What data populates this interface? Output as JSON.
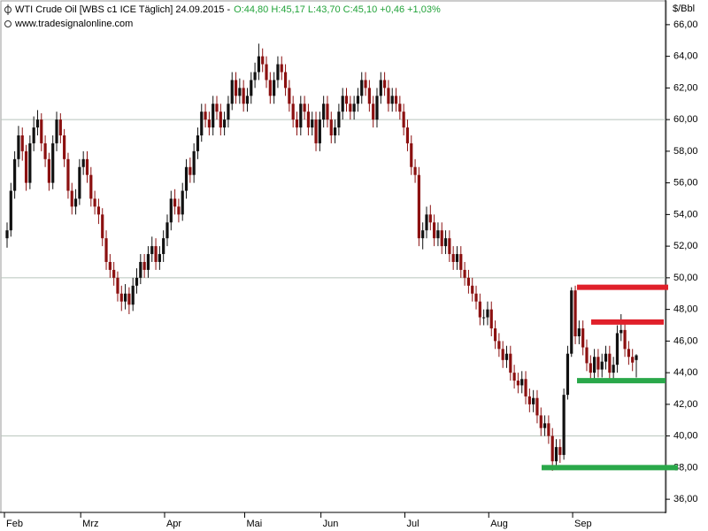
{
  "chart_data": {
    "type": "candlestick",
    "title": "WTI Crude Oil [WBS c1 ICE  Täglich] 24.09.2015 -",
    "title_quote": "O:44,80 H:45,17 L:43,70 C:45,10 +0,46 +1,03%",
    "subtitle": "www.tradesignalonline.com",
    "y_unit": "$/Bbl",
    "up_color": "#111111",
    "down_color": "#8b1010",
    "quote_color": "#22a33a",
    "ylim": [
      35,
      67
    ],
    "yticks": [
      {
        "value": 36,
        "label": "36,00"
      },
      {
        "value": 38,
        "label": "38,00"
      },
      {
        "value": 40,
        "label": "40,00"
      },
      {
        "value": 42,
        "label": "42,00"
      },
      {
        "value": 44,
        "label": "44,00"
      },
      {
        "value": 46,
        "label": "46,00"
      },
      {
        "value": 48,
        "label": "48,00"
      },
      {
        "value": 50,
        "label": "50,00"
      },
      {
        "value": 52,
        "label": "52,00"
      },
      {
        "value": 54,
        "label": "54,00"
      },
      {
        "value": 56,
        "label": "56,00"
      },
      {
        "value": 58,
        "label": "58,00"
      },
      {
        "value": 60,
        "label": "60,00"
      },
      {
        "value": 62,
        "label": "62,00"
      },
      {
        "value": 64,
        "label": "64,00"
      },
      {
        "value": 66,
        "label": "66,00"
      }
    ],
    "grid_values": [
      40,
      50,
      60
    ],
    "levels": [
      {
        "value": 49.4,
        "color": "#e0202a"
      },
      {
        "value": 47.2,
        "color": "#e0202a"
      },
      {
        "value": 43.5,
        "color": "#2aa84a"
      },
      {
        "value": 38.0,
        "color": "#2aa84a"
      }
    ],
    "categories": [
      "Feb",
      null,
      null,
      null,
      null,
      null,
      null,
      null,
      null,
      null,
      null,
      null,
      null,
      null,
      null,
      null,
      null,
      null,
      null,
      null,
      "Mrz",
      null,
      null,
      null,
      null,
      null,
      null,
      null,
      null,
      null,
      null,
      null,
      null,
      null,
      null,
      null,
      null,
      null,
      null,
      null,
      null,
      null,
      "Apr",
      null,
      null,
      null,
      null,
      null,
      null,
      null,
      null,
      null,
      null,
      null,
      null,
      null,
      null,
      null,
      null,
      null,
      null,
      null,
      null,
      "Mai",
      null,
      null,
      null,
      null,
      null,
      null,
      null,
      null,
      null,
      null,
      null,
      null,
      null,
      null,
      null,
      null,
      null,
      null,
      null,
      "Jun",
      null,
      null,
      null,
      null,
      null,
      null,
      null,
      null,
      null,
      null,
      null,
      null,
      null,
      null,
      null,
      null,
      null,
      null,
      null,
      null,
      null,
      "Jul",
      null,
      null,
      null,
      null,
      null,
      null,
      null,
      null,
      null,
      null,
      null,
      null,
      null,
      null,
      null,
      null,
      null,
      null,
      null,
      null,
      null,
      "Aug",
      null,
      null,
      null,
      null,
      null,
      null,
      null,
      null,
      null,
      null,
      null,
      null,
      null,
      null,
      null,
      null,
      null,
      null,
      null,
      null,
      null,
      "Sep",
      null,
      null,
      null,
      null,
      null,
      null,
      null,
      null,
      null,
      null,
      null,
      null,
      null,
      null,
      null,
      null
    ],
    "open": [
      52.5,
      53.0,
      55.5,
      57.5,
      59.0,
      58.0,
      56.0,
      58.5,
      59.5,
      60.0,
      58.5,
      57.5,
      56.0,
      58.5,
      60.0,
      59.0,
      57.5,
      55.5,
      54.5,
      55.0,
      57.0,
      57.5,
      56.5,
      55.0,
      54.5,
      54.0,
      52.5,
      51.0,
      50.5,
      50.0,
      49.0,
      48.5,
      49.0,
      48.3,
      49.5,
      50.0,
      51.0,
      50.5,
      51.5,
      52.0,
      51.0,
      51.5,
      52.5,
      53.5,
      55.0,
      54.5,
      54.0,
      55.5,
      57.0,
      56.5,
      58.0,
      59.0,
      60.5,
      60.0,
      59.5,
      61.0,
      60.5,
      59.5,
      60.0,
      61.0,
      62.5,
      61.5,
      62.0,
      61.0,
      61.5,
      62.5,
      63.0,
      64.0,
      63.5,
      62.5,
      61.5,
      62.5,
      63.5,
      63.0,
      62.0,
      61.0,
      60.0,
      59.5,
      61.0,
      60.5,
      59.5,
      60.0,
      58.5,
      60.0,
      61.0,
      60.0,
      59.0,
      59.5,
      60.5,
      61.5,
      61.0,
      60.5,
      61.0,
      61.5,
      62.5,
      62.0,
      61.0,
      60.0,
      61.5,
      62.5,
      62.0,
      61.0,
      61.5,
      61.0,
      60.5,
      59.5,
      58.5,
      57.0,
      56.5,
      52.5,
      53.0,
      54.0,
      53.5,
      52.5,
      53.0,
      52.0,
      52.5,
      51.5,
      51.0,
      51.5,
      50.5,
      50.0,
      49.5,
      49.0,
      48.5,
      47.5,
      47.5,
      48.0,
      46.8,
      46.0,
      45.5,
      44.8,
      45.2,
      44.0,
      43.5,
      43.2,
      43.6,
      42.5,
      42.0,
      42.4,
      41.3,
      40.5,
      40.8,
      40.0,
      38.4,
      39.3,
      38.8,
      42.6,
      45.2,
      49.2,
      46.3,
      46.8,
      45.6,
      44.6,
      44.0,
      45.0,
      44.2,
      44.7,
      45.2,
      44.0,
      44.5,
      46.5,
      46.7,
      45.5,
      45.0,
      44.8
    ],
    "high": [
      53.5,
      56.0,
      58.0,
      59.6,
      59.5,
      58.4,
      59.0,
      60.2,
      60.6,
      60.4,
      59.0,
      57.9,
      59.0,
      60.5,
      60.4,
      59.4,
      57.9,
      56.0,
      55.6,
      57.5,
      58.0,
      58.0,
      57.0,
      55.5,
      55.0,
      54.4,
      53.0,
      51.5,
      51.0,
      50.4,
      49.5,
      49.6,
      49.4,
      50.0,
      50.6,
      51.5,
      51.5,
      52.0,
      52.6,
      52.5,
      52.0,
      53.0,
      54.0,
      55.5,
      55.6,
      55.0,
      56.0,
      57.5,
      57.6,
      58.5,
      59.5,
      61.0,
      61.0,
      60.5,
      61.5,
      61.5,
      61.0,
      60.5,
      61.5,
      63.0,
      63.0,
      62.6,
      62.5,
      62.0,
      63.0,
      63.6,
      64.8,
      64.5,
      64.0,
      63.0,
      63.0,
      64.0,
      64.0,
      63.5,
      62.5,
      61.5,
      60.5,
      61.5,
      61.5,
      61.0,
      60.5,
      60.5,
      60.5,
      61.5,
      61.5,
      60.5,
      60.0,
      61.0,
      62.0,
      62.0,
      61.5,
      61.5,
      62.0,
      63.0,
      63.0,
      62.5,
      61.5,
      62.0,
      63.0,
      63.0,
      62.5,
      62.0,
      62.0,
      61.5,
      61.0,
      60.0,
      59.0,
      57.5,
      57.0,
      53.5,
      54.5,
      54.6,
      54.0,
      53.5,
      53.5,
      53.0,
      53.0,
      52.0,
      52.0,
      52.0,
      51.0,
      50.5,
      50.0,
      49.5,
      49.0,
      48.0,
      48.5,
      48.5,
      47.3,
      46.5,
      46.0,
      45.7,
      45.7,
      44.5,
      44.0,
      44.1,
      44.1,
      43.0,
      42.9,
      42.9,
      41.8,
      41.3,
      41.3,
      40.5,
      39.8,
      39.8,
      43.0,
      45.7,
      49.4,
      49.5,
      47.3,
      47.3,
      46.1,
      45.1,
      45.5,
      45.5,
      45.2,
      45.7,
      45.7,
      45.0,
      47.0,
      47.7,
      47.2,
      46.0,
      45.5,
      45.17
    ],
    "low": [
      51.9,
      52.6,
      55.0,
      57.0,
      57.4,
      55.5,
      55.6,
      58.0,
      59.0,
      58.0,
      57.0,
      55.5,
      55.6,
      58.0,
      58.5,
      57.0,
      55.0,
      54.0,
      54.0,
      54.6,
      56.5,
      56.0,
      54.5,
      54.0,
      53.4,
      52.0,
      50.5,
      50.0,
      49.5,
      48.5,
      47.9,
      48.0,
      47.7,
      47.9,
      49.0,
      49.6,
      50.0,
      50.0,
      51.0,
      50.5,
      50.5,
      51.0,
      52.0,
      53.0,
      54.0,
      53.5,
      53.6,
      55.0,
      56.0,
      56.0,
      57.5,
      58.6,
      59.5,
      59.0,
      59.0,
      60.0,
      59.0,
      59.0,
      59.5,
      60.6,
      61.0,
      61.0,
      60.5,
      60.5,
      61.0,
      62.0,
      62.5,
      63.0,
      62.0,
      61.0,
      61.0,
      62.0,
      62.5,
      61.5,
      60.5,
      59.5,
      59.0,
      59.0,
      60.0,
      59.0,
      59.0,
      58.0,
      58.0,
      59.5,
      59.5,
      58.5,
      58.5,
      59.0,
      60.0,
      60.5,
      60.0,
      60.0,
      60.5,
      61.0,
      61.5,
      60.5,
      59.5,
      59.5,
      61.0,
      61.5,
      60.5,
      60.5,
      60.5,
      60.0,
      59.0,
      58.0,
      56.5,
      56.0,
      52.0,
      51.8,
      52.5,
      53.0,
      52.0,
      52.0,
      51.5,
      51.5,
      51.0,
      50.5,
      50.5,
      50.0,
      49.5,
      49.0,
      48.5,
      48.0,
      47.0,
      47.0,
      47.0,
      46.3,
      45.5,
      45.0,
      44.3,
      44.3,
      43.5,
      43.0,
      42.7,
      42.7,
      42.0,
      41.5,
      41.5,
      40.8,
      40.0,
      40.0,
      39.5,
      37.8,
      37.9,
      38.3,
      38.5,
      42.3,
      45.0,
      45.8,
      45.8,
      45.1,
      44.1,
      43.5,
      43.5,
      43.7,
      43.7,
      44.2,
      43.5,
      43.5,
      44.0,
      46.0,
      45.0,
      44.5,
      44.1,
      43.7
    ],
    "close": [
      53.0,
      55.5,
      57.5,
      59.0,
      58.0,
      56.0,
      58.5,
      59.5,
      60.0,
      58.5,
      57.5,
      56.0,
      58.5,
      60.0,
      59.0,
      57.5,
      55.5,
      54.5,
      55.0,
      57.0,
      57.5,
      56.5,
      55.0,
      54.5,
      54.0,
      52.5,
      51.0,
      50.5,
      50.0,
      49.0,
      48.5,
      49.0,
      48.3,
      49.5,
      50.0,
      51.0,
      50.5,
      51.5,
      52.0,
      51.0,
      51.5,
      52.5,
      53.5,
      55.0,
      54.5,
      54.0,
      55.5,
      57.0,
      56.5,
      58.0,
      59.0,
      60.5,
      60.0,
      59.5,
      61.0,
      60.5,
      59.5,
      60.0,
      61.0,
      62.5,
      61.5,
      62.0,
      61.0,
      61.5,
      62.5,
      63.0,
      64.0,
      63.5,
      62.5,
      61.5,
      62.5,
      63.5,
      63.0,
      62.0,
      61.0,
      60.0,
      59.5,
      61.0,
      60.5,
      59.5,
      60.0,
      58.5,
      60.0,
      61.0,
      60.0,
      59.0,
      59.5,
      60.5,
      61.5,
      61.0,
      60.5,
      61.0,
      61.5,
      62.5,
      62.0,
      61.0,
      60.0,
      61.5,
      62.5,
      62.0,
      61.0,
      61.5,
      61.0,
      60.5,
      59.5,
      58.5,
      57.0,
      56.5,
      52.5,
      53.0,
      54.0,
      53.5,
      52.5,
      53.0,
      52.0,
      52.5,
      51.5,
      51.0,
      51.5,
      50.5,
      50.0,
      49.5,
      49.0,
      48.5,
      47.5,
      47.5,
      48.0,
      46.8,
      46.0,
      45.5,
      44.8,
      45.2,
      44.0,
      43.5,
      43.2,
      43.6,
      42.5,
      42.0,
      42.4,
      41.3,
      40.5,
      40.8,
      40.0,
      38.4,
      39.3,
      38.8,
      42.6,
      45.2,
      49.2,
      46.3,
      46.8,
      45.6,
      44.6,
      44.0,
      45.0,
      44.2,
      44.7,
      45.2,
      44.0,
      44.5,
      46.5,
      46.7,
      45.5,
      45.0,
      44.64,
      45.1
    ]
  }
}
